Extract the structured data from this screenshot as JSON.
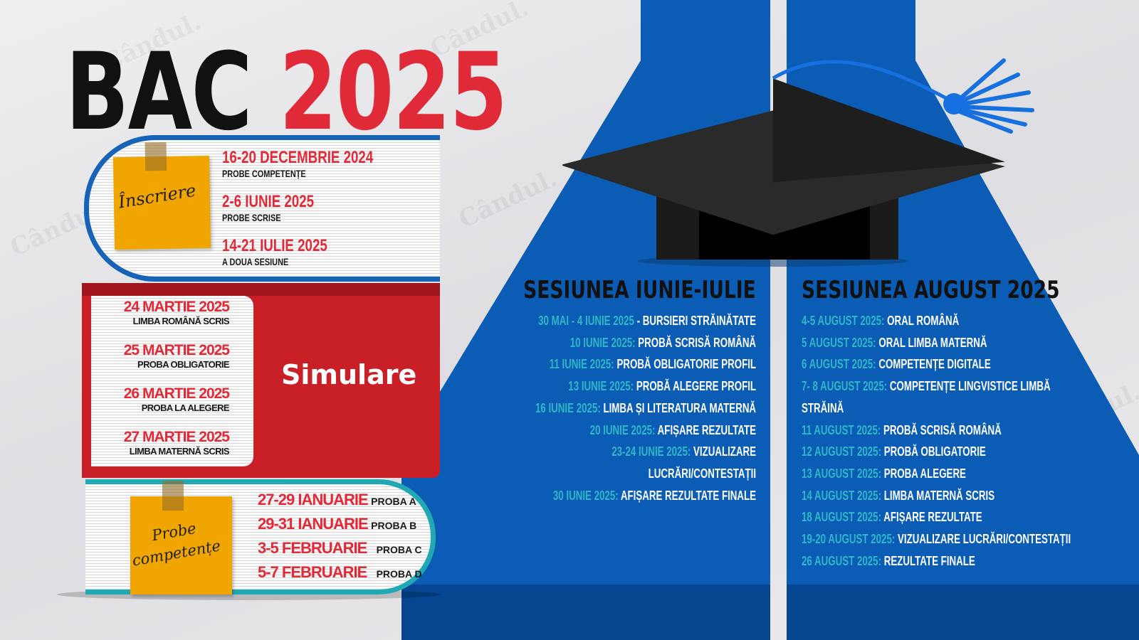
{
  "colors": {
    "accent_red": "#e12a38",
    "blue": "#0a5cb4",
    "teal": "#2fb6c8",
    "note": "#f0a500"
  },
  "title": {
    "word": "BAC",
    "year": "2025"
  },
  "watermark": "Cândul.",
  "inscriere": {
    "label": "Înscriere",
    "items": [
      {
        "date": "16-20 DECEMBRIE 2024",
        "desc": "PROBE COMPETENȚE"
      },
      {
        "date": "2-6 IUNIE 2025",
        "desc": "PROBE SCRISE"
      },
      {
        "date": "14-21 IULIE 2025",
        "desc": "A DOUA SESIUNE"
      }
    ]
  },
  "simulare": {
    "label": "Simulare",
    "items": [
      {
        "date": "24 MARTIE 2025",
        "desc": "LIMBA ROMÂNĂ SCRIS"
      },
      {
        "date": "25 MARTIE 2025",
        "desc": "PROBA OBLIGATORIE"
      },
      {
        "date": "26 MARTIE 2025",
        "desc": "PROBA LA ALEGERE"
      },
      {
        "date": "27 MARTIE 2025",
        "desc": "LIMBA MATERNĂ SCRIS"
      }
    ]
  },
  "competente": {
    "label_line1": "Probe",
    "label_line2": "competențe",
    "items": [
      {
        "date": "27-29 IANUARIE",
        "desc": "PROBA A"
      },
      {
        "date": "29-31 IANUARIE",
        "desc": "PROBA B"
      },
      {
        "date": "3-5 FEBRUARIE",
        "desc": "PROBA C"
      },
      {
        "date": "5-7 FEBRUARIE",
        "desc": "PROBA D"
      }
    ]
  },
  "session1": {
    "title": "SESIUNEA IUNIE-IULIE",
    "items": [
      {
        "date": "30 MAI - 4 IUNIE 2025",
        "desc": " - BURSIERI STRĂINĂTATE"
      },
      {
        "date": "10 IUNIE 2025:",
        "desc": " PROBĂ SCRISĂ ROMÂNĂ"
      },
      {
        "date": "11 IUNIE 2025:",
        "desc": " PROBĂ OBLIGATORIE PROFIL"
      },
      {
        "date": "13 IUNIE 2025:",
        "desc": " PROBĂ ALEGERE PROFIL"
      },
      {
        "date": "16 IUNIE 2025:",
        "desc": " LIMBA ȘI LITERATURA MATERNĂ"
      },
      {
        "date": "20 IUNIE 2025:",
        "desc": " AFIȘARE REZULTATE"
      },
      {
        "date": "23-24 IUNIE 2025:",
        "desc": " VIZUALIZARE"
      },
      {
        "date": "",
        "desc": "LUCRĂRI/CONTESTAȚII"
      },
      {
        "date": "30 IUNIE 2025:",
        "desc": " AFIȘARE REZULTATE FINALE"
      }
    ]
  },
  "session2": {
    "title": "SESIUNEA AUGUST 2025",
    "items": [
      {
        "date": "4-5 AUGUST 2025:",
        "desc": " ORAL ROMÂNĂ"
      },
      {
        "date": "5 AUGUST 2025:",
        "desc": " ORAL LIMBA MATERNĂ"
      },
      {
        "date": "6 AUGUST 2025:",
        "desc": " COMPETENȚE DIGITALE"
      },
      {
        "date": "7- 8 AUGUST 2025:",
        "desc": " COMPETENȚE LINGVISTICE LIMBĂ"
      },
      {
        "date": "",
        "desc": "STRĂINĂ"
      },
      {
        "date": "11 AUGUST 2025:",
        "desc": " PROBĂ SCRISĂ ROMÂNĂ"
      },
      {
        "date": "12 AUGUST 2025:",
        "desc": " PROBĂ OBLIGATORIE"
      },
      {
        "date": "13 AUGUST 2025:",
        "desc": " PROBA ALEGERE"
      },
      {
        "date": "14 AUGUST 2025:",
        "desc": " LIMBA MATERNĂ SCRIS"
      },
      {
        "date": "18 AUGUST 2025:",
        "desc": " AFIȘARE REZULTATE"
      },
      {
        "date": "19-20 AUGUST 2025:",
        "desc": " VIZUALIZARE LUCRĂRI/CONTESTAȚII"
      },
      {
        "date": "26 AUGUST 2025:",
        "desc": " REZULTATE FINALE"
      }
    ]
  }
}
